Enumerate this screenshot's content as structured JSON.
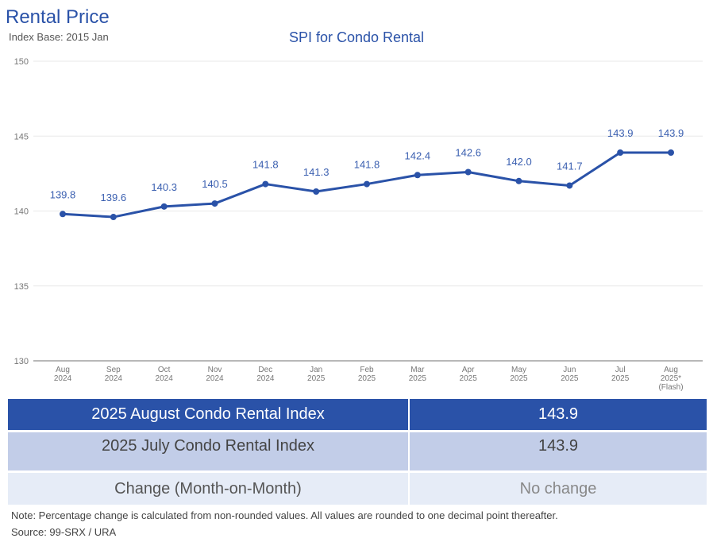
{
  "header": {
    "title": "Rental Price",
    "subtitle": "Index Base: 2015 Jan"
  },
  "chart_data": {
    "type": "line",
    "title": "SPI for Condo Rental",
    "xlabel": "",
    "ylabel": "",
    "ylim": [
      130,
      150
    ],
    "yticks": [
      130,
      135,
      140,
      145,
      150
    ],
    "grid": true,
    "legend": "none",
    "categories": [
      [
        "Aug",
        "2024"
      ],
      [
        "Sep",
        "2024"
      ],
      [
        "Oct",
        "2024"
      ],
      [
        "Nov",
        "2024"
      ],
      [
        "Dec",
        "2024"
      ],
      [
        "Jan",
        "2025"
      ],
      [
        "Feb",
        "2025"
      ],
      [
        "Mar",
        "2025"
      ],
      [
        "Apr",
        "2025"
      ],
      [
        "May",
        "2025"
      ],
      [
        "Jun",
        "2025"
      ],
      [
        "Jul",
        "2025"
      ],
      [
        "Aug",
        "2025*",
        "(Flash)"
      ]
    ],
    "series": [
      {
        "name": "SPI for Condo Rental",
        "color": "#2a52a8",
        "values": [
          139.8,
          139.6,
          140.3,
          140.5,
          141.8,
          141.3,
          141.8,
          142.4,
          142.6,
          142.0,
          141.7,
          143.9,
          143.9
        ],
        "labels": [
          "139.8",
          "139.6",
          "140.3",
          "140.5",
          "141.8",
          "141.3",
          "141.8",
          "142.4",
          "142.6",
          "142.0",
          "141.7",
          "143.9",
          "143.9"
        ]
      }
    ]
  },
  "table": {
    "rows": [
      {
        "label": "2025 August Condo Rental Index",
        "value": "143.9"
      },
      {
        "label": "2025 July Condo Rental Index",
        "value": "143.9"
      },
      {
        "label": "Change (Month-on-Month)",
        "value": "No change"
      }
    ]
  },
  "footer": {
    "note": "Note: Percentage change is calculated from non-rounded values.  All values are rounded to one decimal point thereafter.",
    "source": "Source: 99-SRX / URA"
  },
  "colors": {
    "accent": "#2a52a8",
    "row_dark": "#2a52a8",
    "row_mid": "#c2cde8",
    "row_light": "#e6ecf7"
  }
}
